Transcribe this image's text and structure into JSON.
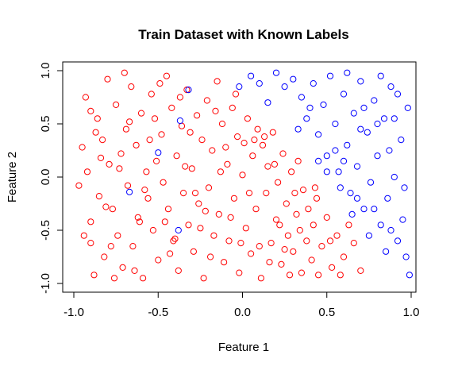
{
  "chart_data": {
    "type": "scatter",
    "title": "Train Dataset with Known Labels",
    "xlabel": "Feature 1",
    "ylabel": "Feature 2",
    "xlim": [
      -1.0,
      1.0
    ],
    "ylim": [
      -1.0,
      1.0
    ],
    "xticks": [
      "-1.0",
      "-0.5",
      "0.0",
      "0.5",
      "1.0"
    ],
    "yticks": [
      "-1.0",
      "-0.5",
      "0.0",
      "0.5",
      "1.0"
    ],
    "grid": false,
    "marker": "open-circle",
    "colors": {
      "class_red": "#ff0000",
      "class_blue": "#0000ff"
    },
    "series": [
      {
        "color": "#ff0000",
        "points": [
          [
            -0.95,
            0.28
          ],
          [
            -0.93,
            0.75
          ],
          [
            -0.92,
            0.05
          ],
          [
            -0.9,
            -0.42
          ],
          [
            -0.9,
            -0.62
          ],
          [
            -0.88,
            -0.92
          ],
          [
            -0.86,
            0.55
          ],
          [
            -0.85,
            -0.18
          ],
          [
            -0.83,
            0.35
          ],
          [
            -0.82,
            -0.75
          ],
          [
            -0.8,
            0.92
          ],
          [
            -0.79,
            0.12
          ],
          [
            -0.77,
            -0.3
          ],
          [
            -0.75,
            0.68
          ],
          [
            -0.74,
            -0.55
          ],
          [
            -0.72,
            0.22
          ],
          [
            -0.71,
            -0.85
          ],
          [
            -0.69,
            0.45
          ],
          [
            -0.68,
            -0.08
          ],
          [
            -0.66,
            0.85
          ],
          [
            -0.65,
            -0.65
          ],
          [
            -0.63,
            0.3
          ],
          [
            -0.62,
            -0.38
          ],
          [
            -0.6,
            0.6
          ],
          [
            -0.59,
            -0.95
          ],
          [
            -0.57,
            0.05
          ],
          [
            -0.56,
            -0.2
          ],
          [
            -0.54,
            0.78
          ],
          [
            -0.53,
            -0.5
          ],
          [
            -0.51,
            0.15
          ],
          [
            -0.5,
            -0.78
          ],
          [
            -0.48,
            0.4
          ],
          [
            -0.47,
            -0.05
          ],
          [
            -0.45,
            0.95
          ],
          [
            -0.44,
            -0.3
          ],
          [
            -0.42,
            0.65
          ],
          [
            -0.41,
            -0.6
          ],
          [
            -0.39,
            0.2
          ],
          [
            -0.38,
            -0.88
          ],
          [
            -0.36,
            0.48
          ],
          [
            -0.35,
            -0.15
          ],
          [
            -0.33,
            0.82
          ],
          [
            -0.32,
            -0.45
          ],
          [
            -0.3,
            0.08
          ],
          [
            -0.29,
            -0.7
          ],
          [
            -0.27,
            0.58
          ],
          [
            -0.26,
            -0.25
          ],
          [
            -0.24,
            0.35
          ],
          [
            -0.23,
            -0.95
          ],
          [
            -0.21,
            0.72
          ],
          [
            -0.2,
            -0.1
          ],
          [
            -0.18,
            0.25
          ],
          [
            -0.17,
            -0.55
          ],
          [
            -0.15,
            0.9
          ],
          [
            -0.14,
            -0.35
          ],
          [
            -0.12,
            0.5
          ],
          [
            -0.11,
            -0.8
          ],
          [
            -0.09,
            0.12
          ],
          [
            -0.08,
            -0.6
          ],
          [
            -0.06,
            0.65
          ],
          [
            -0.05,
            -0.2
          ],
          [
            -0.03,
            0.38
          ],
          [
            -0.02,
            -0.9
          ],
          [
            0.0,
            0.02
          ],
          [
            0.02,
            -0.48
          ],
          [
            0.03,
            0.55
          ],
          [
            0.05,
            -0.72
          ],
          [
            0.06,
            0.2
          ],
          [
            0.08,
            -0.3
          ],
          [
            0.09,
            0.45
          ],
          [
            0.11,
            -0.95
          ],
          [
            0.12,
            0.3
          ],
          [
            0.14,
            -0.15
          ],
          [
            0.15,
            0.1
          ],
          [
            0.17,
            -0.62
          ],
          [
            0.18,
            0.42
          ],
          [
            0.2,
            -0.4
          ],
          [
            0.21,
            -0.05
          ],
          [
            0.23,
            -0.82
          ],
          [
            0.24,
            0.22
          ],
          [
            0.26,
            -0.25
          ],
          [
            0.27,
            -0.55
          ],
          [
            0.29,
            0.05
          ],
          [
            0.3,
            -0.7
          ],
          [
            0.32,
            -0.35
          ],
          [
            0.33,
            0.15
          ],
          [
            0.35,
            -0.9
          ],
          [
            0.36,
            -0.12
          ],
          [
            0.38,
            -0.6
          ],
          [
            0.39,
            -0.3
          ],
          [
            0.41,
            -0.78
          ],
          [
            0.42,
            -0.45
          ],
          [
            0.44,
            -0.2
          ],
          [
            0.45,
            -0.92
          ],
          [
            0.47,
            -0.65
          ],
          [
            0.5,
            -0.38
          ],
          [
            0.53,
            -0.85
          ],
          [
            0.56,
            -0.55
          ],
          [
            0.6,
            -0.75
          ],
          [
            0.63,
            -0.45
          ],
          [
            -0.97,
            -0.08
          ],
          [
            -0.87,
            0.42
          ],
          [
            -0.78,
            -0.65
          ],
          [
            -0.7,
            0.98
          ],
          [
            -0.61,
            -0.42
          ],
          [
            -0.52,
            0.55
          ],
          [
            -0.43,
            -0.72
          ],
          [
            -0.34,
            0.1
          ],
          [
            -0.25,
            -0.48
          ],
          [
            -0.16,
            0.62
          ],
          [
            -0.07,
            -0.38
          ],
          [
            0.01,
            0.32
          ],
          [
            0.1,
            -0.65
          ],
          [
            0.19,
            0.12
          ],
          [
            0.28,
            -0.92
          ],
          [
            -0.9,
            0.62
          ],
          [
            -0.81,
            -0.28
          ],
          [
            -0.73,
            0.08
          ],
          [
            -0.64,
            -0.88
          ],
          [
            -0.55,
            0.35
          ],
          [
            -0.46,
            -0.42
          ],
          [
            -0.37,
            0.75
          ],
          [
            -0.28,
            -0.15
          ],
          [
            -0.19,
            -0.75
          ],
          [
            -0.1,
            0.28
          ],
          [
            -0.01,
            -0.62
          ],
          [
            0.07,
            0.35
          ],
          [
            0.16,
            -0.8
          ],
          [
            0.22,
            -0.45
          ],
          [
            0.31,
            -0.15
          ],
          [
            -0.94,
            -0.55
          ],
          [
            -0.84,
            0.18
          ],
          [
            -0.76,
            -0.95
          ],
          [
            -0.67,
            0.52
          ],
          [
            -0.58,
            -0.12
          ],
          [
            -0.49,
            0.88
          ],
          [
            -0.4,
            -0.58
          ],
          [
            -0.31,
            0.42
          ],
          [
            -0.22,
            -0.32
          ],
          [
            -0.13,
            0.05
          ],
          [
            -0.04,
            0.78
          ],
          [
            0.04,
            -0.15
          ],
          [
            0.13,
            0.38
          ],
          [
            0.25,
            -0.68
          ],
          [
            0.34,
            -0.5
          ],
          [
            0.43,
            -0.1
          ],
          [
            0.52,
            -0.6
          ],
          [
            0.58,
            -0.92
          ],
          [
            0.66,
            -0.62
          ],
          [
            0.7,
            -0.88
          ]
        ]
      },
      {
        "color": "#0000ff",
        "points": [
          [
            0.3,
            0.92
          ],
          [
            0.35,
            0.75
          ],
          [
            0.38,
            0.55
          ],
          [
            0.42,
            0.88
          ],
          [
            0.45,
            0.4
          ],
          [
            0.48,
            0.68
          ],
          [
            0.5,
            0.2
          ],
          [
            0.52,
            0.95
          ],
          [
            0.55,
            0.5
          ],
          [
            0.57,
            0.05
          ],
          [
            0.6,
            0.78
          ],
          [
            0.62,
            0.3
          ],
          [
            0.64,
            -0.15
          ],
          [
            0.66,
            0.6
          ],
          [
            0.68,
            0.1
          ],
          [
            0.7,
            0.9
          ],
          [
            0.72,
            -0.3
          ],
          [
            0.74,
            0.42
          ],
          [
            0.76,
            -0.05
          ],
          [
            0.78,
            0.72
          ],
          [
            0.8,
            0.2
          ],
          [
            0.82,
            -0.45
          ],
          [
            0.84,
            0.55
          ],
          [
            0.86,
            -0.2
          ],
          [
            0.88,
            0.85
          ],
          [
            0.9,
            0.0
          ],
          [
            0.92,
            -0.6
          ],
          [
            0.94,
            0.35
          ],
          [
            0.96,
            -0.1
          ],
          [
            0.98,
            0.65
          ],
          [
            0.99,
            -0.92
          ],
          [
            0.85,
            -0.7
          ],
          [
            0.75,
            -0.55
          ],
          [
            0.65,
            -0.35
          ],
          [
            0.95,
            -0.4
          ],
          [
            0.55,
            0.25
          ],
          [
            0.45,
            0.15
          ],
          [
            0.4,
            0.65
          ],
          [
            0.33,
            0.45
          ],
          [
            0.25,
            0.85
          ],
          [
            0.2,
            0.98
          ],
          [
            0.15,
            0.7
          ],
          [
            0.1,
            0.88
          ],
          [
            0.05,
            0.95
          ],
          [
            -0.02,
            0.85
          ],
          [
            0.62,
            0.98
          ],
          [
            0.72,
            0.65
          ],
          [
            0.82,
            0.95
          ],
          [
            0.92,
            0.78
          ],
          [
            0.58,
            -0.1
          ],
          [
            0.68,
            -0.2
          ],
          [
            0.78,
            -0.3
          ],
          [
            0.88,
            -0.5
          ],
          [
            0.97,
            -0.75
          ],
          [
            0.7,
            0.45
          ],
          [
            0.8,
            0.5
          ],
          [
            0.9,
            0.55
          ],
          [
            0.6,
            0.15
          ],
          [
            0.5,
            0.05
          ],
          [
            0.87,
            0.25
          ],
          [
            -0.37,
            0.53
          ],
          [
            -0.5,
            0.23
          ],
          [
            -0.32,
            0.82
          ],
          [
            -0.67,
            -0.14
          ],
          [
            -0.38,
            -0.5
          ]
        ]
      }
    ]
  }
}
